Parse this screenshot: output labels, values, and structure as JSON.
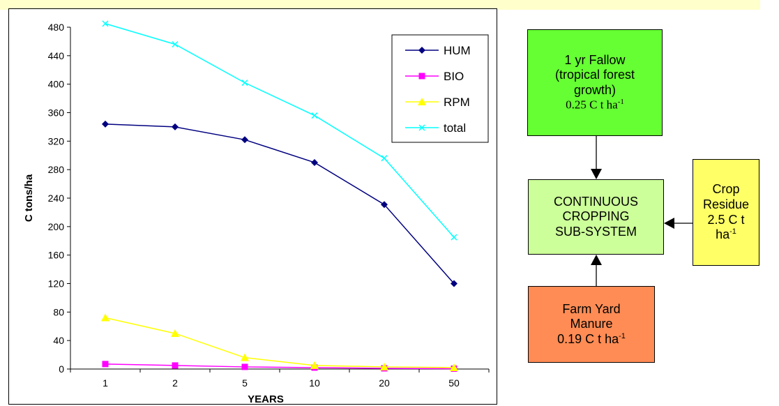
{
  "chart_data": {
    "type": "line",
    "categories": [
      "1",
      "2",
      "5",
      "10",
      "20",
      "50"
    ],
    "series": [
      {
        "name": "HUM",
        "color": "#000080",
        "marker": "diamond",
        "values": [
          344,
          340,
          322,
          290,
          231,
          120
        ]
      },
      {
        "name": "BIO",
        "color": "#ff00ff",
        "marker": "square",
        "values": [
          7,
          5,
          3,
          2,
          1,
          0.5
        ]
      },
      {
        "name": "RPM",
        "color": "#ffff00",
        "marker": "triangle",
        "values": [
          72,
          50,
          16,
          5,
          3,
          2
        ]
      },
      {
        "name": "total",
        "color": "#00ffff",
        "marker": "x",
        "values": [
          485,
          456,
          402,
          356,
          296,
          185
        ]
      }
    ],
    "xlabel": "YEARS",
    "ylabel": "C tons/ha",
    "ylim": [
      0,
      480
    ],
    "yticks": [
      "0",
      "40",
      "80",
      "120",
      "160",
      "200",
      "240",
      "280",
      "320",
      "360",
      "400",
      "440",
      "480"
    ],
    "grid": false,
    "legend": "top-right"
  },
  "diagram": {
    "fallow": {
      "line1": "1 yr Fallow",
      "line2": "(tropical forest",
      "line3": "growth)",
      "value": "0.25 C t ha",
      "sup": "-1",
      "color": "#66ff33"
    },
    "center": {
      "line1": "CONTINUOUS",
      "line2": "CROPPING",
      "line3": "SUB-SYSTEM",
      "color": "#ccff99"
    },
    "residue": {
      "line1": "Crop",
      "line2": "Residue",
      "line3": "2.5 C t",
      "line4": "ha",
      "sup": "-1",
      "color": "#ffff66"
    },
    "manure": {
      "line1": "Farm Yard",
      "line2": "Manure",
      "line3": "0.19 C t ha",
      "sup": "-1",
      "color": "#ff8c55"
    }
  }
}
